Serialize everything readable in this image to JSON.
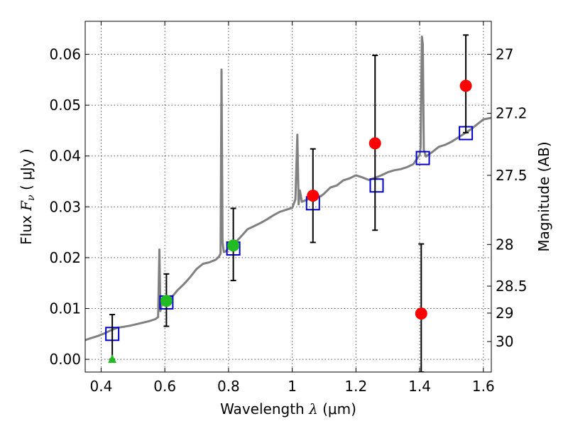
{
  "chart_data": {
    "type": "scatter",
    "xlabel": "Wavelength  λ (μm)",
    "xlabel_parts": {
      "text": "Wavelength  ",
      "math": "λ",
      "unit": " (μm)"
    },
    "ylabel_parts": {
      "text": "Flux  ",
      "math": "F",
      "sub": "ν",
      "unit": "  ( μJy )"
    },
    "ylabel_right": "Magnitude (AB)",
    "xlim": [
      0.35,
      1.625
    ],
    "ylim": [
      -0.0025,
      0.0665
    ],
    "x_ticks": [
      0.4,
      0.6,
      0.8,
      1.0,
      1.2,
      1.4,
      1.6
    ],
    "x_tick_labels": [
      "0.4",
      "0.6",
      "0.8",
      "1",
      "1.2",
      "1.4",
      "1.6"
    ],
    "y_ticks": [
      0.0,
      0.01,
      0.02,
      0.03,
      0.04,
      0.05,
      0.06
    ],
    "y_tick_labels": [
      "0.00",
      "0.01",
      "0.02",
      "0.03",
      "0.04",
      "0.05",
      "0.06"
    ],
    "right_ticks": [
      {
        "flux": 0.06,
        "label": "27"
      },
      {
        "flux": 0.0484,
        "label": "27.2"
      },
      {
        "flux": 0.0362,
        "label": "27.5"
      },
      {
        "flux": 0.0226,
        "label": "28"
      },
      {
        "flux": 0.0144,
        "label": "28.5"
      },
      {
        "flux": 0.0091,
        "label": "29"
      },
      {
        "flux": 0.0035,
        "label": "30"
      }
    ],
    "grid": true,
    "colors": {
      "spectrum": "#808080",
      "model": "#0000cc",
      "red": "#ff0000",
      "green": "#22bb22",
      "error": "#000000"
    },
    "series": [
      {
        "marker": "line",
        "x": [
          0.35,
          0.37,
          0.39,
          0.41,
          0.43,
          0.45,
          0.47,
          0.49,
          0.51,
          0.53,
          0.55,
          0.57,
          0.579,
          0.583,
          0.586,
          0.59,
          0.6,
          0.62,
          0.64,
          0.66,
          0.68,
          0.7,
          0.72,
          0.74,
          0.76,
          0.77,
          0.775,
          0.778,
          0.781,
          0.785,
          0.79,
          0.8,
          0.82,
          0.84,
          0.86,
          0.88,
          0.9,
          0.92,
          0.94,
          0.96,
          0.98,
          1.0,
          1.01,
          1.016,
          1.02,
          1.024,
          1.03,
          1.05,
          1.07,
          1.09,
          1.1,
          1.12,
          1.14,
          1.16,
          1.18,
          1.2,
          1.22,
          1.24,
          1.26,
          1.28,
          1.3,
          1.32,
          1.34,
          1.36,
          1.38,
          1.4,
          1.403,
          1.407,
          1.41,
          1.413,
          1.42,
          1.44,
          1.46,
          1.48,
          1.5,
          1.52,
          1.54,
          1.56,
          1.58,
          1.6,
          1.625
        ],
        "y": [
          0.0038,
          0.0042,
          0.0046,
          0.0051,
          0.0057,
          0.0062,
          0.0064,
          0.0066,
          0.0069,
          0.0072,
          0.0075,
          0.0079,
          0.0083,
          0.0216,
          0.0095,
          0.0108,
          0.0112,
          0.0121,
          0.0136,
          0.0148,
          0.0162,
          0.0178,
          0.0188,
          0.0191,
          0.0196,
          0.0202,
          0.0208,
          0.057,
          0.0232,
          0.0211,
          0.0212,
          0.0218,
          0.0229,
          0.0242,
          0.0256,
          0.0262,
          0.0268,
          0.0275,
          0.0283,
          0.029,
          0.0294,
          0.0298,
          0.0315,
          0.0442,
          0.0305,
          0.0332,
          0.031,
          0.0315,
          0.0322,
          0.0321,
          0.0326,
          0.0338,
          0.0342,
          0.0352,
          0.0356,
          0.0362,
          0.0358,
          0.0353,
          0.0357,
          0.0362,
          0.0368,
          0.0372,
          0.0374,
          0.0378,
          0.0384,
          0.0402,
          0.0418,
          0.0635,
          0.062,
          0.0412,
          0.0399,
          0.0408,
          0.0418,
          0.0422,
          0.0428,
          0.0436,
          0.0444,
          0.0452,
          0.0462,
          0.0472,
          0.0475
        ]
      },
      {
        "marker": "open-square",
        "x": [
          0.435,
          0.605,
          0.815,
          1.065,
          1.265,
          1.41,
          1.545
        ],
        "y": [
          0.005,
          0.0112,
          0.0218,
          0.0307,
          0.0342,
          0.0396,
          0.0445
        ]
      },
      {
        "marker": "filled-circle-red",
        "x": [
          1.065,
          1.26,
          1.405,
          1.545
        ],
        "y": [
          0.0322,
          0.0425,
          0.009,
          0.0538
        ],
        "yerr_low": [
          0.023,
          0.0254,
          -0.0025,
          0.0446
        ],
        "yerr_high": [
          0.0414,
          0.0598,
          0.0227,
          0.0638
        ]
      },
      {
        "marker": "filled-circle-green",
        "x": [
          0.605,
          0.815
        ],
        "y": [
          0.0115,
          0.0224
        ],
        "yerr_low": [
          0.0065,
          0.0155
        ],
        "yerr_high": [
          0.0168,
          0.0297
        ]
      },
      {
        "marker": "triangle-green",
        "x": [
          0.435
        ],
        "y": [
          0.0
        ],
        "yerr_low": [
          0.0
        ],
        "yerr_high": [
          0.0088
        ]
      }
    ]
  }
}
